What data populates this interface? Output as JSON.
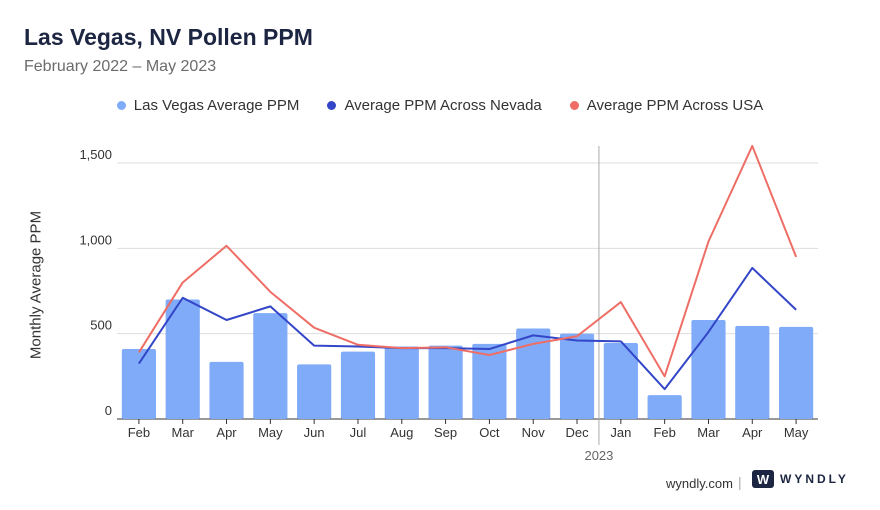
{
  "header": {
    "title": "Las Vegas, NV Pollen PPM",
    "subtitle": "February 2022 – May 2023"
  },
  "footer": {
    "site": "wyndly.com",
    "separator": "|",
    "logo_text": "WYNDLY",
    "logo_letter": "W"
  },
  "colors": {
    "bars": "#7fabf8",
    "nevada": "#3346c7",
    "usa": "#ee6e66",
    "logo": "#1c2541"
  },
  "chart_data": {
    "type": "bar",
    "categories": [
      "Feb",
      "Mar",
      "Apr",
      "May",
      "Jun",
      "Jul",
      "Aug",
      "Sep",
      "Oct",
      "Nov",
      "Dec",
      "Jan",
      "Feb",
      "Mar",
      "Apr",
      "May"
    ],
    "year_divider": {
      "before_index": 11,
      "label": "2023"
    },
    "ylabel": "Monthly Average PPM",
    "ylim": [
      0,
      1600
    ],
    "yticks": [
      0,
      500,
      1000,
      1500
    ],
    "ytick_labels": [
      "0",
      "500",
      "1,000",
      "1,500"
    ],
    "grid": true,
    "legend_position": "top-center",
    "series": [
      {
        "name": "Las Vegas Average PPM",
        "kind": "bar",
        "values": [
          410,
          700,
          335,
          620,
          320,
          395,
          425,
          430,
          440,
          530,
          500,
          445,
          140,
          580,
          545,
          540
        ]
      },
      {
        "name": "Average PPM Across Nevada",
        "kind": "line",
        "values": [
          325,
          710,
          580,
          660,
          430,
          425,
          415,
          415,
          410,
          490,
          460,
          455,
          175,
          510,
          885,
          640
        ]
      },
      {
        "name": "Average PPM Across USA",
        "kind": "line",
        "values": [
          390,
          800,
          1015,
          745,
          535,
          435,
          415,
          420,
          375,
          440,
          485,
          685,
          250,
          1040,
          1600,
          950
        ]
      }
    ]
  }
}
